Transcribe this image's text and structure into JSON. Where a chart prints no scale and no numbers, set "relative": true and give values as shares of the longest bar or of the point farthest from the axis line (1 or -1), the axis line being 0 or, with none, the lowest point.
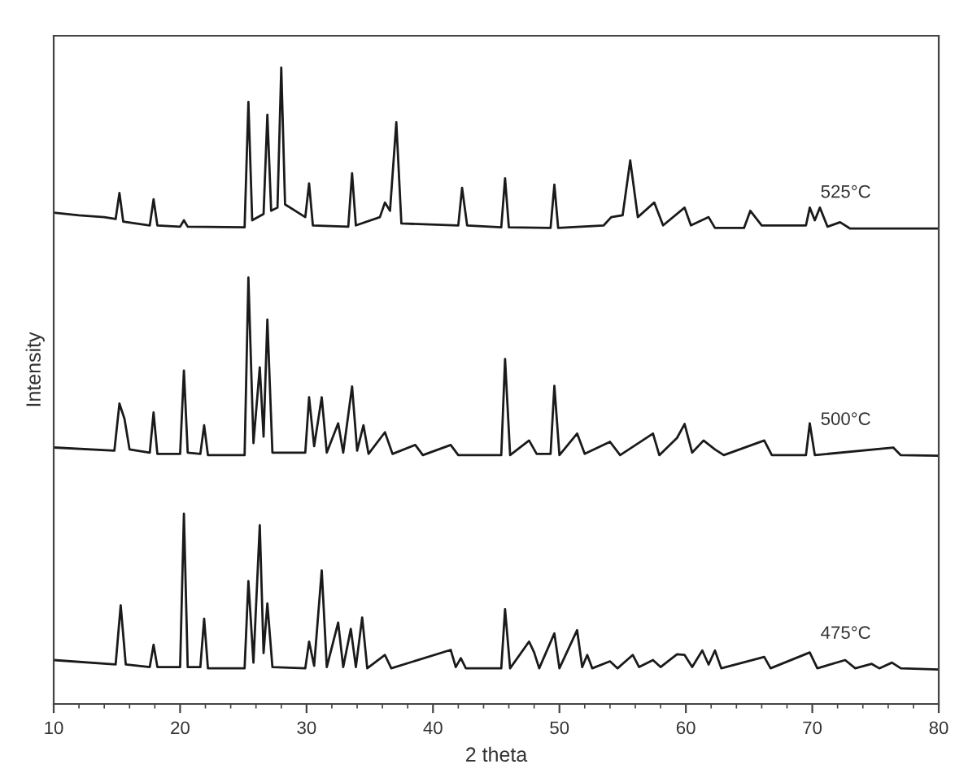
{
  "chart_data": {
    "type": "line",
    "relative": true,
    "xlabel": "2 theta",
    "ylabel": "Intensity",
    "xlim": [
      10,
      80
    ],
    "xticks": [
      10,
      {
        "value": 12,
        "label": null
      },
      {
        "value": 14,
        "label": null
      },
      {
        "value": 16,
        "label": null
      },
      {
        "value": 18,
        "label": null
      },
      20,
      {
        "value": 22,
        "label": null
      },
      {
        "value": 24,
        "label": null
      },
      {
        "value": 26,
        "label": null
      },
      {
        "value": 28,
        "label": null
      },
      30,
      {
        "value": 32,
        "label": null
      },
      {
        "value": 34,
        "label": null
      },
      {
        "value": 36,
        "label": null
      },
      {
        "value": 38,
        "label": null
      },
      40,
      {
        "value": 42,
        "label": null
      },
      {
        "value": 44,
        "label": null
      },
      {
        "value": 46,
        "label": null
      },
      {
        "value": 48,
        "label": null
      },
      50,
      {
        "value": 52,
        "label": null
      },
      {
        "value": 54,
        "label": null
      },
      {
        "value": 56,
        "label": null
      },
      {
        "value": 58,
        "label": null
      },
      60,
      {
        "value": 62,
        "label": null
      },
      {
        "value": 64,
        "label": null
      },
      {
        "value": 66,
        "label": null
      },
      {
        "value": 68,
        "label": null
      },
      70,
      {
        "value": 72,
        "label": null
      },
      {
        "value": 74,
        "label": null
      },
      {
        "value": 76,
        "label": null
      },
      {
        "value": 78,
        "label": null
      },
      80
    ],
    "grid": false,
    "legend": false,
    "marker": "none",
    "line_style": "solid",
    "series": [
      {
        "name": "525°C",
        "color": "#1a1a1a",
        "x": [
          10,
          12,
          14,
          14.9,
          15.2,
          15.5,
          17.6,
          17.9,
          18.2,
          20.0,
          20.3,
          20.6,
          25.1,
          25.4,
          25.7,
          26.6,
          26.9,
          27.2,
          27.7,
          28.0,
          28.3,
          29.9,
          30.2,
          30.5,
          33.3,
          33.6,
          33.9,
          35.8,
          36.2,
          36.6,
          37.1,
          37.5,
          42.0,
          42.3,
          42.7,
          45.4,
          45.7,
          46.0,
          49.3,
          49.6,
          49.9,
          53.5,
          54.1,
          55.0,
          55.6,
          56.2,
          57.5,
          58.2,
          59.9,
          60.4,
          61.8,
          62.3,
          64.6,
          65.1,
          66.0,
          69.5,
          69.8,
          70.2,
          70.6,
          71.2,
          72.2,
          73.0,
          80
        ],
        "values": [
          0.772,
          0.768,
          0.765,
          0.762,
          0.803,
          0.758,
          0.752,
          0.793,
          0.752,
          0.75,
          0.76,
          0.75,
          0.749,
          0.946,
          0.76,
          0.77,
          0.926,
          0.775,
          0.78,
          1.0,
          0.785,
          0.765,
          0.818,
          0.752,
          0.75,
          0.834,
          0.752,
          0.765,
          0.788,
          0.775,
          0.914,
          0.755,
          0.752,
          0.811,
          0.752,
          0.749,
          0.826,
          0.749,
          0.748,
          0.816,
          0.748,
          0.752,
          0.765,
          0.768,
          0.854,
          0.765,
          0.788,
          0.752,
          0.78,
          0.752,
          0.765,
          0.748,
          0.748,
          0.775,
          0.752,
          0.752,
          0.78,
          0.76,
          0.78,
          0.75,
          0.757,
          0.747,
          0.747
        ]
      },
      {
        "name": "500°C",
        "color": "#1a1a1a",
        "x": [
          10,
          14.8,
          15.2,
          15.6,
          16.0,
          17.6,
          17.9,
          18.2,
          20.0,
          20.3,
          20.6,
          21.6,
          21.9,
          22.2,
          25.1,
          25.4,
          25.8,
          26.3,
          26.6,
          26.9,
          27.3,
          29.9,
          30.2,
          30.6,
          31.2,
          31.6,
          32.5,
          32.9,
          33.6,
          34.0,
          34.5,
          34.9,
          36.2,
          36.8,
          38.6,
          39.2,
          41.4,
          42.0,
          45.4,
          45.7,
          46.1,
          47.6,
          48.2,
          49.3,
          49.6,
          50.0,
          51.4,
          52.0,
          54.0,
          54.8,
          57.4,
          57.9,
          59.3,
          59.9,
          60.5,
          61.4,
          62.3,
          63.0,
          66.2,
          66.8,
          69.5,
          69.8,
          70.2,
          76.4,
          77.0,
          80
        ],
        "values": [
          0.403,
          0.398,
          0.472,
          0.448,
          0.4,
          0.395,
          0.458,
          0.393,
          0.393,
          0.524,
          0.395,
          0.393,
          0.438,
          0.391,
          0.391,
          0.67,
          0.41,
          0.529,
          0.42,
          0.604,
          0.395,
          0.395,
          0.482,
          0.405,
          0.482,
          0.395,
          0.441,
          0.395,
          0.499,
          0.398,
          0.438,
          0.393,
          0.427,
          0.393,
          0.407,
          0.391,
          0.407,
          0.391,
          0.391,
          0.542,
          0.391,
          0.414,
          0.393,
          0.393,
          0.5,
          0.391,
          0.425,
          0.393,
          0.412,
          0.391,
          0.425,
          0.391,
          0.418,
          0.44,
          0.395,
          0.414,
          0.4,
          0.391,
          0.414,
          0.391,
          0.391,
          0.441,
          0.391,
          0.403,
          0.391,
          0.39
        ]
      },
      {
        "name": "475°C",
        "color": "#1a1a1a",
        "x": [
          10,
          14.9,
          15.3,
          15.7,
          17.6,
          17.9,
          18.2,
          20.0,
          20.3,
          20.6,
          21.6,
          21.9,
          22.2,
          25.1,
          25.4,
          25.8,
          26.3,
          26.6,
          26.9,
          27.3,
          29.9,
          30.2,
          30.6,
          31.2,
          31.6,
          32.5,
          32.9,
          33.5,
          33.9,
          34.4,
          34.8,
          36.2,
          36.7,
          41.4,
          41.8,
          42.2,
          42.6,
          45.4,
          45.7,
          46.1,
          47.6,
          48.0,
          48.4,
          49.6,
          50.0,
          51.4,
          51.8,
          52.2,
          52.6,
          54.0,
          54.6,
          55.8,
          56.3,
          57.4,
          58.0,
          59.3,
          59.9,
          60.5,
          61.3,
          61.8,
          62.3,
          62.8,
          66.2,
          66.7,
          69.8,
          70.4,
          72.6,
          73.4,
          74.7,
          75.3,
          76.3,
          77.0,
          80
        ],
        "values": [
          0.069,
          0.062,
          0.155,
          0.062,
          0.058,
          0.093,
          0.058,
          0.058,
          0.299,
          0.058,
          0.058,
          0.134,
          0.056,
          0.056,
          0.193,
          0.065,
          0.281,
          0.08,
          0.158,
          0.058,
          0.056,
          0.098,
          0.06,
          0.21,
          0.058,
          0.128,
          0.058,
          0.118,
          0.058,
          0.136,
          0.056,
          0.077,
          0.056,
          0.085,
          0.058,
          0.072,
          0.056,
          0.056,
          0.149,
          0.056,
          0.098,
          0.081,
          0.056,
          0.111,
          0.056,
          0.116,
          0.058,
          0.077,
          0.056,
          0.067,
          0.056,
          0.077,
          0.058,
          0.069,
          0.058,
          0.078,
          0.077,
          0.058,
          0.084,
          0.062,
          0.084,
          0.056,
          0.074,
          0.056,
          0.081,
          0.056,
          0.069,
          0.056,
          0.063,
          0.056,
          0.065,
          0.056,
          0.054
        ]
      }
    ]
  }
}
